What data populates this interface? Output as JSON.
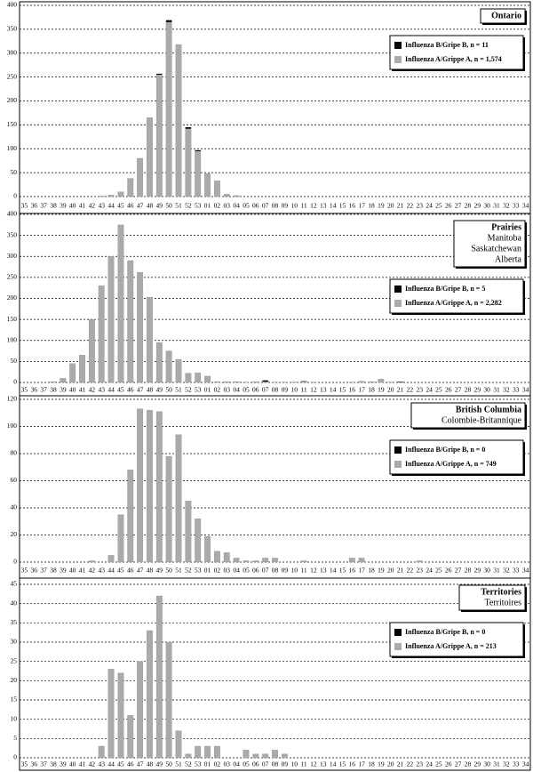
{
  "chart_data": [
    {
      "type": "bar",
      "title": "Ontario",
      "categories": [
        "35",
        "36",
        "37",
        "38",
        "39",
        "40",
        "41",
        "42",
        "43",
        "44",
        "45",
        "46",
        "47",
        "48",
        "49",
        "50",
        "51",
        "52",
        "53",
        "01",
        "02",
        "03",
        "04",
        "05",
        "06",
        "07",
        "08",
        "09",
        "10",
        "11",
        "12",
        "13",
        "14",
        "15",
        "16",
        "17",
        "18",
        "19",
        "20",
        "21",
        "22",
        "23",
        "24",
        "25",
        "26",
        "27",
        "28",
        "29",
        "30",
        "31",
        "32",
        "33",
        "34"
      ],
      "series": [
        {
          "name": "Influenza B/Gripe B, n = 11",
          "color": "#000000",
          "values": [
            0,
            0,
            0,
            0,
            0,
            0,
            0,
            0,
            0,
            0,
            0,
            0,
            0,
            0,
            2,
            4,
            0,
            3,
            2,
            0,
            0,
            0,
            0,
            0,
            0,
            0,
            0,
            0,
            0,
            0,
            0,
            0,
            0,
            0,
            0,
            0,
            0,
            0,
            0,
            0,
            0,
            0,
            0,
            0,
            0,
            0,
            0,
            0,
            0,
            0,
            0,
            0,
            0
          ]
        },
        {
          "name": "Influenza A/Grippe A, n = 1,574",
          "color": "#aaaaaa",
          "values": [
            0,
            0,
            0,
            0,
            0,
            0,
            0,
            0,
            1,
            3,
            10,
            38,
            80,
            165,
            255,
            365,
            318,
            142,
            95,
            48,
            33,
            5,
            2,
            0,
            0,
            0,
            0,
            0,
            0,
            0,
            0,
            0,
            0,
            0,
            0,
            0,
            0,
            0,
            0,
            0,
            0,
            0,
            0,
            0,
            0,
            0,
            0,
            0,
            0,
            0,
            0,
            0,
            0
          ]
        }
      ],
      "ylim": [
        0,
        400
      ],
      "yticks": [
        0,
        50,
        100,
        150,
        200,
        250,
        300,
        350,
        400
      ],
      "grid": true,
      "stacked": true
    },
    {
      "type": "bar",
      "title": "Prairies",
      "subtitle_lines": [
        "Manitoba",
        "Saskatchewan",
        "Alberta"
      ],
      "categories": [
        "35",
        "36",
        "37",
        "38",
        "39",
        "40",
        "41",
        "42",
        "43",
        "44",
        "45",
        "46",
        "47",
        "48",
        "49",
        "50",
        "51",
        "52",
        "53",
        "01",
        "02",
        "03",
        "04",
        "05",
        "06",
        "07",
        "08",
        "09",
        "10",
        "11",
        "12",
        "13",
        "14",
        "15",
        "16",
        "17",
        "18",
        "19",
        "20",
        "21",
        "22",
        "23",
        "24",
        "25",
        "26",
        "27",
        "28",
        "29",
        "30",
        "31",
        "32",
        "33",
        "34"
      ],
      "series": [
        {
          "name": "Influenza B/Gripe B, n = 5",
          "color": "#000000",
          "values": [
            0,
            0,
            0,
            0,
            0,
            0,
            0,
            0,
            0,
            0,
            0,
            0,
            0,
            0,
            0,
            0,
            0,
            0,
            0,
            0,
            0,
            0,
            0,
            0,
            0,
            3,
            0,
            0,
            0,
            1,
            0,
            0,
            0,
            0,
            0,
            0,
            0,
            0,
            0,
            1,
            0,
            0,
            0,
            0,
            0,
            0,
            0,
            0,
            0,
            0,
            0,
            0,
            0
          ]
        },
        {
          "name": "Influenza A/Grippe A, n = 2,282",
          "color": "#aaaaaa",
          "values": [
            0,
            0,
            0,
            2,
            10,
            45,
            65,
            150,
            230,
            300,
            375,
            290,
            262,
            203,
            95,
            75,
            55,
            22,
            23,
            15,
            2,
            2,
            2,
            1,
            2,
            2,
            1,
            1,
            1,
            2,
            1,
            0,
            0,
            0,
            1,
            3,
            2,
            8,
            1,
            1,
            0,
            0,
            0,
            0,
            0,
            0,
            0,
            0,
            0,
            0,
            0,
            0,
            0
          ]
        }
      ],
      "ylim": [
        0,
        400
      ],
      "yticks": [
        0,
        50,
        100,
        150,
        200,
        250,
        300,
        350,
        400
      ],
      "grid": true,
      "stacked": true
    },
    {
      "type": "bar",
      "title": "British Columbia",
      "subtitle_lines": [
        "Colombie-Britannique"
      ],
      "categories": [
        "35",
        "36",
        "37",
        "38",
        "39",
        "40",
        "41",
        "42",
        "43",
        "44",
        "45",
        "46",
        "47",
        "48",
        "49",
        "50",
        "51",
        "52",
        "53",
        "01",
        "02",
        "03",
        "04",
        "05",
        "06",
        "07",
        "08",
        "09",
        "10",
        "11",
        "12",
        "13",
        "14",
        "15",
        "16",
        "17",
        "18",
        "19",
        "20",
        "21",
        "22",
        "23",
        "24",
        "25",
        "26",
        "27",
        "28",
        "29",
        "30",
        "31",
        "32",
        "33",
        "34"
      ],
      "series": [
        {
          "name": "Influenza B/Gripe B, n = 0",
          "color": "#000000",
          "values": [
            0,
            0,
            0,
            0,
            0,
            0,
            0,
            0,
            0,
            0,
            0,
            0,
            0,
            0,
            0,
            0,
            0,
            0,
            0,
            0,
            0,
            0,
            0,
            0,
            0,
            0,
            0,
            0,
            0,
            0,
            0,
            0,
            0,
            0,
            0,
            0,
            0,
            0,
            0,
            0,
            0,
            0,
            0,
            0,
            0,
            0,
            0,
            0,
            0,
            0,
            0,
            0,
            0
          ]
        },
        {
          "name": "Influenza A/Grippe A, n = 749",
          "color": "#aaaaaa",
          "values": [
            0,
            0,
            0,
            0,
            0,
            0,
            0,
            1,
            0,
            5,
            35,
            68,
            113,
            112,
            111,
            78,
            94,
            45,
            32,
            19,
            8,
            7,
            3,
            1,
            1,
            3,
            3,
            0,
            0,
            1,
            0,
            0,
            0,
            0,
            3,
            3,
            0,
            0,
            0,
            0,
            0,
            1,
            0,
            0,
            0,
            0,
            0,
            0,
            0,
            0,
            0,
            0,
            0
          ]
        }
      ],
      "ylim": [
        0,
        120
      ],
      "yticks": [
        0,
        20,
        40,
        60,
        80,
        100,
        120
      ],
      "grid": true,
      "stacked": true
    },
    {
      "type": "bar",
      "title": "Territories",
      "subtitle_lines": [
        "Territoires"
      ],
      "categories": [
        "35",
        "36",
        "37",
        "38",
        "39",
        "40",
        "41",
        "42",
        "43",
        "44",
        "45",
        "46",
        "47",
        "48",
        "49",
        "50",
        "51",
        "52",
        "53",
        "01",
        "02",
        "03",
        "04",
        "05",
        "06",
        "07",
        "08",
        "09",
        "10",
        "11",
        "12",
        "13",
        "14",
        "15",
        "16",
        "17",
        "18",
        "19",
        "20",
        "21",
        "22",
        "23",
        "24",
        "25",
        "26",
        "27",
        "28",
        "29",
        "30",
        "31",
        "32",
        "33",
        "34"
      ],
      "series": [
        {
          "name": "Influenza B/Gripe B, n = 0",
          "color": "#000000",
          "values": [
            0,
            0,
            0,
            0,
            0,
            0,
            0,
            0,
            0,
            0,
            0,
            0,
            0,
            0,
            0,
            0,
            0,
            0,
            0,
            0,
            0,
            0,
            0,
            0,
            0,
            0,
            0,
            0,
            0,
            0,
            0,
            0,
            0,
            0,
            0,
            0,
            0,
            0,
            0,
            0,
            0,
            0,
            0,
            0,
            0,
            0,
            0,
            0,
            0,
            0,
            0,
            0,
            0
          ]
        },
        {
          "name": "Influenza A/Grippe A, n = 213",
          "color": "#aaaaaa",
          "values": [
            0,
            0,
            0,
            0,
            0,
            0,
            0,
            0,
            3,
            23,
            22,
            11,
            25,
            33,
            42,
            30,
            7,
            1,
            3,
            3,
            3,
            0,
            0,
            2,
            1,
            1,
            2,
            1,
            0,
            0,
            0,
            0,
            0,
            0,
            0,
            0,
            0,
            0,
            0,
            0,
            0,
            0,
            0,
            0,
            0,
            0,
            0,
            0,
            0,
            0,
            0,
            0,
            0
          ]
        }
      ],
      "ylim": [
        0,
        45
      ],
      "yticks": [
        0,
        5,
        10,
        15,
        20,
        25,
        30,
        35,
        40,
        45
      ],
      "grid": true,
      "stacked": true
    }
  ]
}
